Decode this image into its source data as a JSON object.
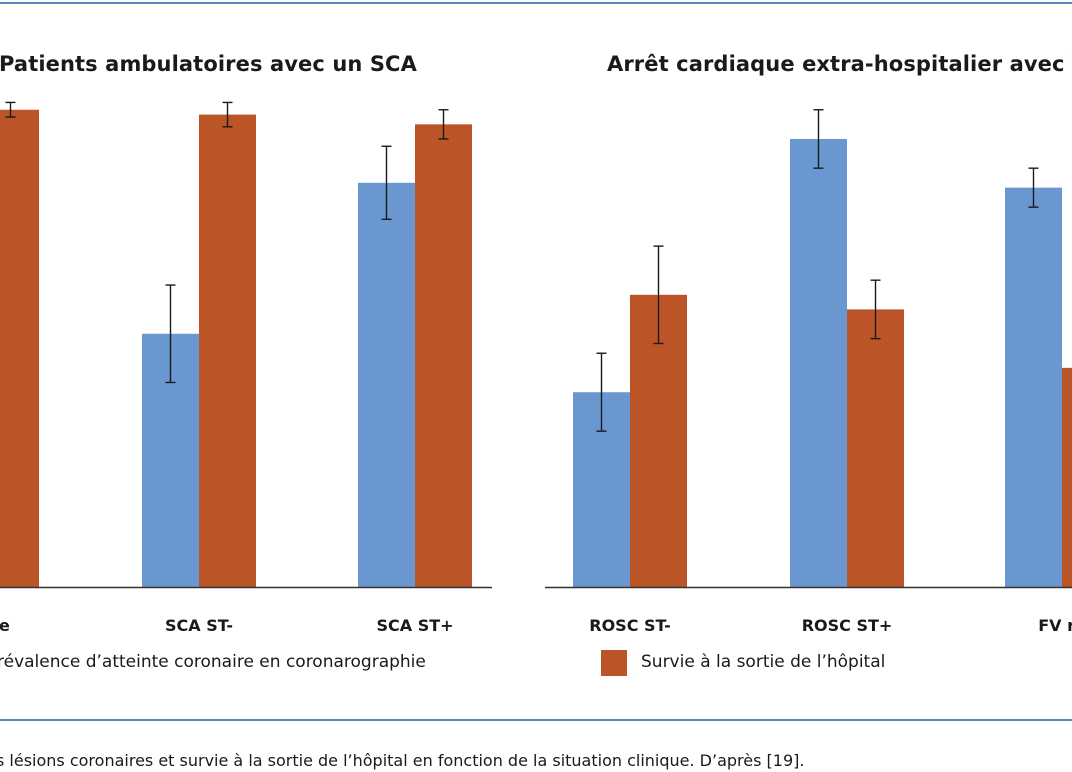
{
  "colors": {
    "blue": "#6a97d0",
    "orange": "#bb5528",
    "rule": "#5b86c2",
    "axis": "#333333"
  },
  "chart_data": [
    {
      "type": "bar",
      "title": "Patients ambulatoires avec un SCA",
      "categories": [
        "stable",
        "SCA ST-",
        "SCA ST+"
      ],
      "ylim": [
        0,
        100
      ],
      "series": [
        {
          "key": "blue",
          "values": [
            null,
            52,
            83
          ],
          "err": [
            null,
            10,
            7.5
          ]
        },
        {
          "key": "orange",
          "values": [
            98,
            97,
            95
          ],
          "err": [
            1.5,
            2.5,
            3
          ]
        }
      ]
    },
    {
      "type": "bar",
      "title": "Arrêt cardiaque extra-hospitalier avec TV",
      "categories": [
        "ROSC ST-",
        "ROSC ST+",
        "FV ré"
      ],
      "ylim": [
        0,
        100
      ],
      "series": [
        {
          "key": "blue",
          "values": [
            40,
            92,
            82
          ],
          "err": [
            8,
            6,
            4
          ]
        },
        {
          "key": "orange",
          "values": [
            60,
            57,
            45
          ],
          "err": [
            10,
            6,
            null
          ]
        }
      ]
    }
  ],
  "legend": [
    {
      "key": "blue",
      "label": "révalence d’atteinte coronaire en coronarographie"
    },
    {
      "key": "orange",
      "label": "Survie à la sortie de l’hôpital"
    }
  ],
  "caption": "s lésions coronaires et survie à la sortie de l’hôpital en fonction de la situation clinique. D’après [19]."
}
